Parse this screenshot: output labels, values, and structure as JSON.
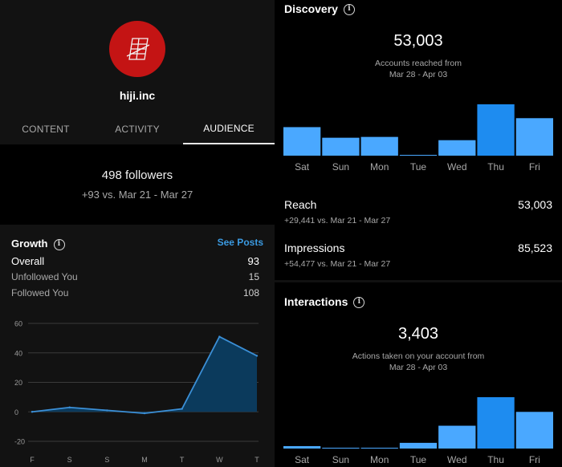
{
  "profile": {
    "username": "hiji.inc",
    "tabs": [
      {
        "label": "CONTENT",
        "active": false
      },
      {
        "label": "ACTIVITY",
        "active": false
      },
      {
        "label": "AUDIENCE",
        "active": true
      }
    ]
  },
  "followers": {
    "count_text": "498 followers",
    "delta_text": "+93 vs. Mar 21 - Mar 27"
  },
  "growth": {
    "title": "Growth",
    "info_icon": "info-icon",
    "see_posts_label": "See Posts",
    "stats": [
      {
        "label": "Overall",
        "value": "93"
      },
      {
        "label": "Unfollowed You",
        "value": "15"
      },
      {
        "label": "Followed You",
        "value": "108"
      }
    ]
  },
  "discovery": {
    "title": "Discovery",
    "info_icon": "info-icon",
    "big_number": "53,003",
    "caption_line1": "Accounts reached from",
    "caption_line2": "Mar 28 - Apr 03",
    "reach": {
      "label": "Reach",
      "value": "53,003",
      "delta": "+29,441 vs. Mar 21 - Mar 27"
    },
    "impressions": {
      "label": "Impressions",
      "value": "85,523",
      "delta": "+54,477 vs. Mar 21 - Mar 27"
    }
  },
  "interactions": {
    "title": "Interactions",
    "info_icon": "info-icon",
    "big_number": "3,403",
    "caption_line1": "Actions taken on your account from",
    "caption_line2": "Mar 28 - Apr 03"
  },
  "colors": {
    "bar_normal": "#4aa8ff",
    "bar_highlight": "#1e8cf0",
    "area_fill": "#0b3a5c",
    "area_line": "#3b8fd6",
    "link_blue": "#3b9ae1"
  },
  "chart_data": [
    {
      "type": "area",
      "x": [
        "F",
        "S",
        "S",
        "M",
        "T",
        "W",
        "T"
      ],
      "values": [
        0,
        3,
        1,
        -1,
        2,
        51,
        38
      ],
      "yticks": [
        60,
        40,
        20,
        0,
        -20
      ],
      "ylim": [
        -20,
        60
      ]
    },
    {
      "type": "bar",
      "categories": [
        "Sat",
        "Sun",
        "Mon",
        "Tue",
        "Wed",
        "Thu",
        "Fri"
      ],
      "values": [
        35,
        22,
        23,
        0.5,
        19,
        63,
        46
      ],
      "highlight_index": 5
    },
    {
      "type": "bar",
      "categories": [
        "Sat",
        "Sun",
        "Mon",
        "Tue",
        "Wed",
        "Thu",
        "Fri"
      ],
      "values": [
        3,
        1,
        1,
        7,
        28,
        63,
        45
      ],
      "highlight_index": 5
    }
  ]
}
